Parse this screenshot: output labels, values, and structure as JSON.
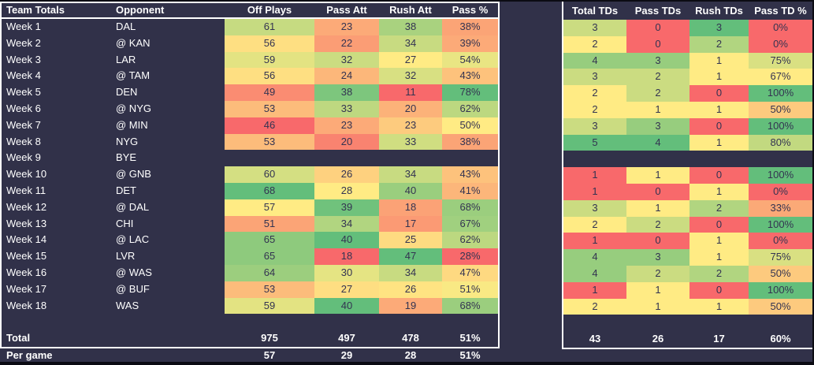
{
  "colors": {
    "background": "#313149",
    "frame": "#0b0b13",
    "table_border": "#ffffff",
    "scale_min_color": "#F8696B",
    "scale_mid_color": "#FFEB84",
    "scale_max_color": "#63BE7B",
    "cell_text": "#333351",
    "label_text": "#ffffff"
  },
  "left_table": {
    "headers": [
      "Team Totals",
      "Opponent",
      "Off Plays",
      "Pass Att",
      "Rush Att",
      "Pass %"
    ],
    "rows": [
      {
        "week": "Week 1",
        "opponent": "DAL",
        "off_plays": 61,
        "pass_att": 23,
        "rush_att": 38,
        "pass_pct": 38
      },
      {
        "week": "Week 2",
        "opponent": "@ KAN",
        "off_plays": 56,
        "pass_att": 22,
        "rush_att": 34,
        "pass_pct": 39
      },
      {
        "week": "Week 3",
        "opponent": "LAR",
        "off_plays": 59,
        "pass_att": 32,
        "rush_att": 27,
        "pass_pct": 54
      },
      {
        "week": "Week 4",
        "opponent": "@ TAM",
        "off_plays": 56,
        "pass_att": 24,
        "rush_att": 32,
        "pass_pct": 43
      },
      {
        "week": "Week 5",
        "opponent": "DEN",
        "off_plays": 49,
        "pass_att": 38,
        "rush_att": 11,
        "pass_pct": 78
      },
      {
        "week": "Week 6",
        "opponent": "@ NYG",
        "off_plays": 53,
        "pass_att": 33,
        "rush_att": 20,
        "pass_pct": 62
      },
      {
        "week": "Week 7",
        "opponent": "@ MIN",
        "off_plays": 46,
        "pass_att": 23,
        "rush_att": 23,
        "pass_pct": 50
      },
      {
        "week": "Week 8",
        "opponent": "NYG",
        "off_plays": 53,
        "pass_att": 20,
        "rush_att": 33,
        "pass_pct": 38
      },
      {
        "week": "Week 9",
        "opponent": "BYE",
        "off_plays": null,
        "pass_att": null,
        "rush_att": null,
        "pass_pct": null
      },
      {
        "week": "Week 10",
        "opponent": "@ GNB",
        "off_plays": 60,
        "pass_att": 26,
        "rush_att": 34,
        "pass_pct": 43
      },
      {
        "week": "Week 11",
        "opponent": "DET",
        "off_plays": 68,
        "pass_att": 28,
        "rush_att": 40,
        "pass_pct": 41
      },
      {
        "week": "Week 12",
        "opponent": "@ DAL",
        "off_plays": 57,
        "pass_att": 39,
        "rush_att": 18,
        "pass_pct": 68
      },
      {
        "week": "Week 13",
        "opponent": "CHI",
        "off_plays": 51,
        "pass_att": 34,
        "rush_att": 17,
        "pass_pct": 67
      },
      {
        "week": "Week 14",
        "opponent": "@ LAC",
        "off_plays": 65,
        "pass_att": 40,
        "rush_att": 25,
        "pass_pct": 62
      },
      {
        "week": "Week 15",
        "opponent": "LVR",
        "off_plays": 65,
        "pass_att": 18,
        "rush_att": 47,
        "pass_pct": 28
      },
      {
        "week": "Week 16",
        "opponent": "@ WAS",
        "off_plays": 64,
        "pass_att": 30,
        "rush_att": 34,
        "pass_pct": 47
      },
      {
        "week": "Week 17",
        "opponent": "@ BUF",
        "off_plays": 53,
        "pass_att": 27,
        "rush_att": 26,
        "pass_pct": 51
      },
      {
        "week": "Week 18",
        "opponent": "WAS",
        "off_plays": 59,
        "pass_att": 40,
        "rush_att": 19,
        "pass_pct": 68
      }
    ],
    "total": {
      "label": "Total",
      "off_plays": "975",
      "pass_att": "497",
      "rush_att": "478",
      "pass_pct": "51%"
    },
    "per_game": {
      "label": "Per game",
      "off_plays": "57",
      "pass_att": "29",
      "rush_att": "28",
      "pass_pct": "51%"
    }
  },
  "right_table": {
    "headers": [
      "Total TDs",
      "Pass TDs",
      "Rush TDs",
      "Pass TD %"
    ],
    "rows": [
      {
        "total_tds": 3,
        "pass_tds": 0,
        "rush_tds": 3,
        "pass_td_pct": 0
      },
      {
        "total_tds": 2,
        "pass_tds": 0,
        "rush_tds": 2,
        "pass_td_pct": 0
      },
      {
        "total_tds": 4,
        "pass_tds": 3,
        "rush_tds": 1,
        "pass_td_pct": 75
      },
      {
        "total_tds": 3,
        "pass_tds": 2,
        "rush_tds": 1,
        "pass_td_pct": 67
      },
      {
        "total_tds": 2,
        "pass_tds": 2,
        "rush_tds": 0,
        "pass_td_pct": 100
      },
      {
        "total_tds": 2,
        "pass_tds": 1,
        "rush_tds": 1,
        "pass_td_pct": 50
      },
      {
        "total_tds": 3,
        "pass_tds": 3,
        "rush_tds": 0,
        "pass_td_pct": 100
      },
      {
        "total_tds": 5,
        "pass_tds": 4,
        "rush_tds": 1,
        "pass_td_pct": 80
      },
      {
        "total_tds": null,
        "pass_tds": null,
        "rush_tds": null,
        "pass_td_pct": null
      },
      {
        "total_tds": 1,
        "pass_tds": 1,
        "rush_tds": 0,
        "pass_td_pct": 100
      },
      {
        "total_tds": 1,
        "pass_tds": 0,
        "rush_tds": 1,
        "pass_td_pct": 0
      },
      {
        "total_tds": 3,
        "pass_tds": 1,
        "rush_tds": 2,
        "pass_td_pct": 33
      },
      {
        "total_tds": 2,
        "pass_tds": 2,
        "rush_tds": 0,
        "pass_td_pct": 100
      },
      {
        "total_tds": 1,
        "pass_tds": 0,
        "rush_tds": 1,
        "pass_td_pct": 0
      },
      {
        "total_tds": 4,
        "pass_tds": 3,
        "rush_tds": 1,
        "pass_td_pct": 75
      },
      {
        "total_tds": 4,
        "pass_tds": 2,
        "rush_tds": 2,
        "pass_td_pct": 50
      },
      {
        "total_tds": 1,
        "pass_tds": 1,
        "rush_tds": 0,
        "pass_td_pct": 100
      },
      {
        "total_tds": 2,
        "pass_tds": 1,
        "rush_tds": 1,
        "pass_td_pct": 50
      }
    ],
    "total": {
      "total_tds": "43",
      "pass_tds": "26",
      "rush_tds": "17",
      "pass_td_pct": "60%"
    }
  }
}
